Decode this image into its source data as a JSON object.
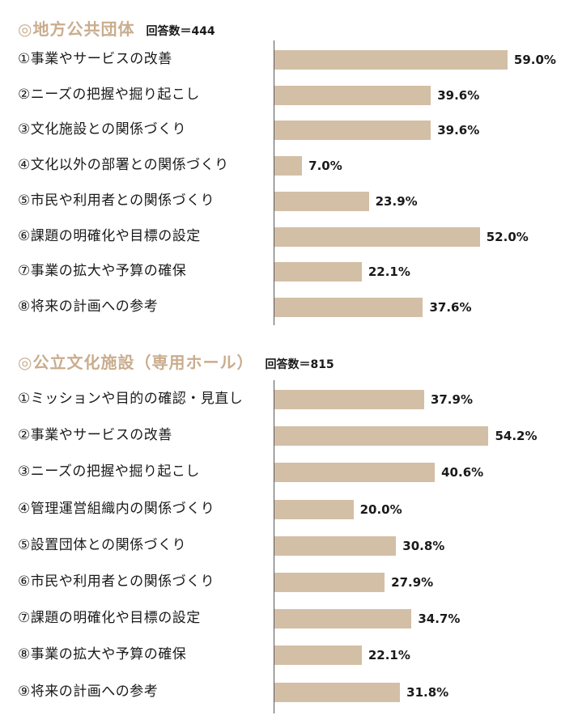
{
  "colors": {
    "bar": "#d3bfa6",
    "heading_accent": "#c9ad8d",
    "text": "#1a1a1a",
    "axis": "#555555"
  },
  "chart_data": [
    {
      "type": "bar",
      "orientation": "horizontal",
      "title": "◎地方公共団体",
      "respondents_label": "回答数＝444",
      "categories": [
        "①事業やサービスの改善",
        "②ニーズの把握や掘り起こし",
        "③文化施設との関係づくり",
        "④文化以外の部署との関係づくり",
        "⑤市民や利用者との関係づくり",
        "⑥課題の明確化や目標の設定",
        "⑦事業の拡大や予算の確保",
        "⑧将来の計画への参考"
      ],
      "values": [
        59.0,
        39.6,
        39.6,
        7.0,
        23.9,
        52.0,
        22.1,
        37.6
      ],
      "value_labels": [
        "59.0%",
        "39.6%",
        "39.6%",
        "7.0%",
        "23.9%",
        "52.0%",
        "22.1%",
        "37.6%"
      ],
      "unit": "%",
      "xlim": [
        0,
        100
      ],
      "grid": false
    },
    {
      "type": "bar",
      "orientation": "horizontal",
      "title": "◎公立文化施設（専用ホール）",
      "respondents_label": "回答数＝815",
      "categories": [
        "①ミッションや目的の確認・見直し",
        "②事業やサービスの改善",
        "③ニーズの把握や掘り起こし",
        "④管理運営組織内の関係づくり",
        "⑤設置団体との関係づくり",
        "⑥市民や利用者との関係づくり",
        "⑦課題の明確化や目標の設定",
        "⑧事業の拡大や予算の確保",
        "⑨将来の計画への参考"
      ],
      "values": [
        37.9,
        54.2,
        40.6,
        20.0,
        30.8,
        27.9,
        34.7,
        22.1,
        31.8
      ],
      "value_labels": [
        "37.9%",
        "54.2%",
        "40.6%",
        "20.0%",
        "30.8%",
        "27.9%",
        "34.7%",
        "22.1%",
        "31.8%"
      ],
      "unit": "%",
      "xlim": [
        0,
        100
      ],
      "grid": false
    }
  ]
}
